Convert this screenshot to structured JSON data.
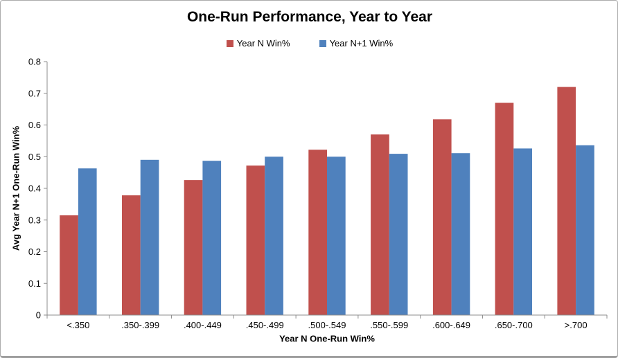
{
  "chart_data": {
    "type": "bar",
    "title": "One-Run Performance, Year to Year",
    "xlabel": "Year N One-Run Win%",
    "ylabel": "Avg Year N+1 One-Run Win%",
    "categories": [
      "<.350",
      ".350-.399",
      ".400-.449",
      ".450-.499",
      ".500-.549",
      ".550-.599",
      ".600-.649",
      ".650-.700",
      ">.700"
    ],
    "series": [
      {
        "name": "Year N Win%",
        "color": "#C0504D",
        "values": [
          0.315,
          0.378,
          0.426,
          0.472,
          0.522,
          0.57,
          0.618,
          0.67,
          0.72
        ]
      },
      {
        "name": "Year N+1 Win%",
        "color": "#4F81BD",
        "values": [
          0.463,
          0.49,
          0.487,
          0.5,
          0.5,
          0.509,
          0.511,
          0.526,
          0.536
        ]
      }
    ],
    "ylim": [
      0,
      0.8
    ],
    "ytick_step": 0.1,
    "ytick_labels": [
      "0",
      "0.1",
      "0.2",
      "0.3",
      "0.4",
      "0.5",
      "0.6",
      "0.7",
      "0.8"
    ],
    "grid": false,
    "legend_position": "top"
  },
  "colors": {
    "axis": "#8c8c8c",
    "text": "#000000",
    "background": "#ffffff",
    "border": "#ababab"
  }
}
